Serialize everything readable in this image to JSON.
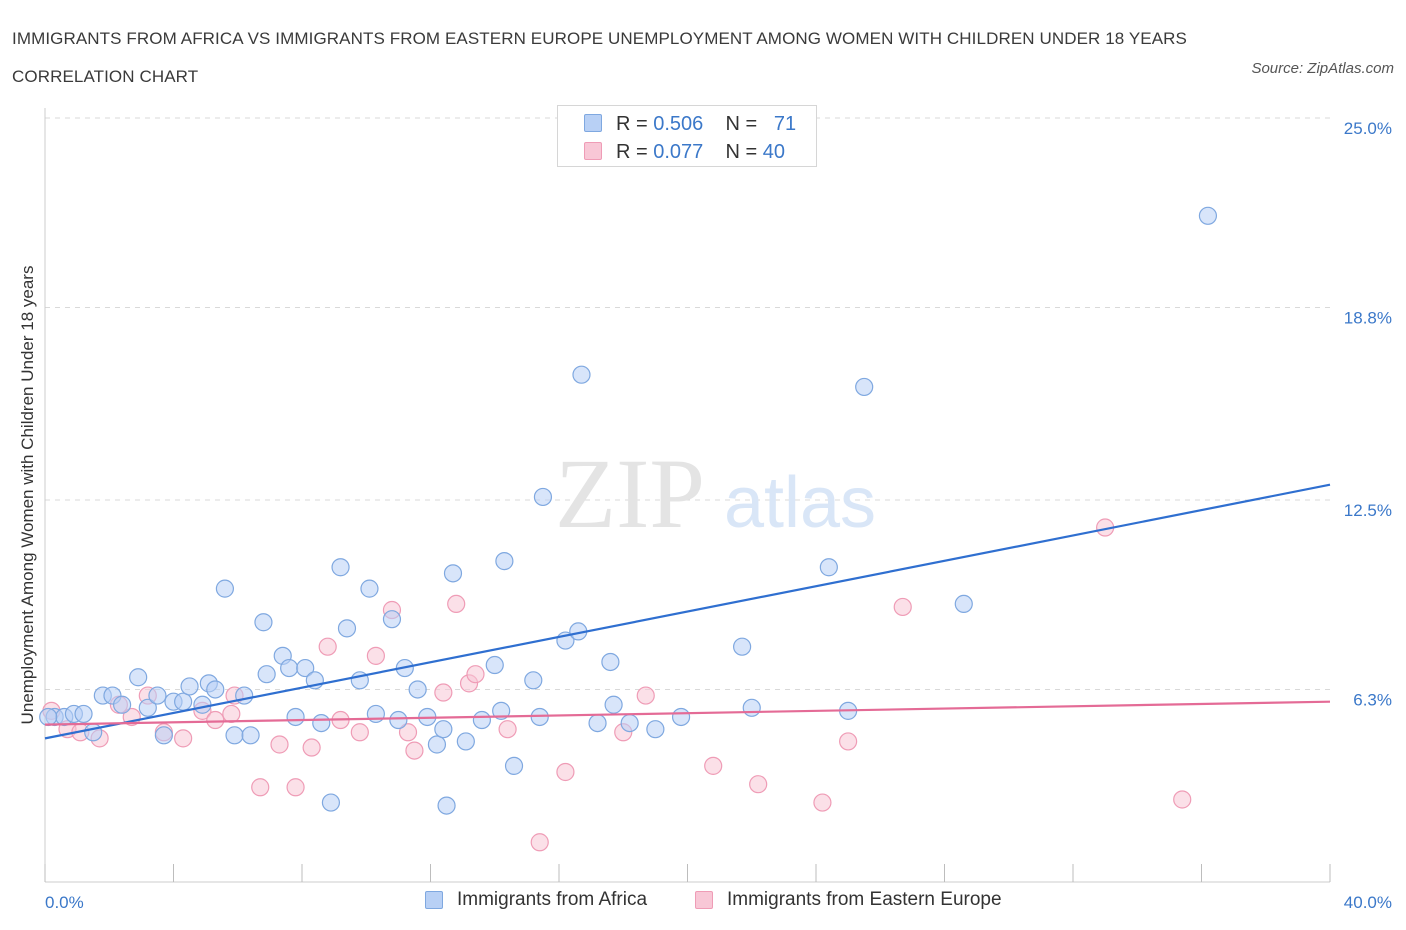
{
  "header": {
    "title": "IMMIGRANTS FROM AFRICA VS IMMIGRANTS FROM EASTERN EUROPE UNEMPLOYMENT AMONG WOMEN WITH CHILDREN UNDER 18 YEARS CORRELATION CHART",
    "source": "Source: ZipAtlas.com"
  },
  "watermark": {
    "zip": "ZIP",
    "atlas": "atlas"
  },
  "legend": {
    "africa": {
      "r_label": "R =",
      "r_value": "0.506",
      "n_label": "N =",
      "n_value": "71"
    },
    "eastern_europe": {
      "r_label": "R =",
      "r_value": "0.077",
      "n_label": "N =",
      "n_value": "40"
    }
  },
  "bottom_legend": {
    "africa": "Immigrants from Africa",
    "eastern_europe": "Immigrants from Eastern Europe"
  },
  "colors": {
    "africa_fill": "#b8d0f5",
    "africa_stroke": "#7fa8e0",
    "africa_line": "#2f6fd0",
    "europe_fill": "#f8c7d6",
    "europe_stroke": "#ef9cb6",
    "europe_line": "#e46b96",
    "tick_text": "#3b78c9",
    "grid": "#d9d9d9"
  },
  "chart_data": {
    "type": "scatter",
    "title": "IMMIGRANTS FROM AFRICA VS IMMIGRANTS FROM EASTERN EUROPE UNEMPLOYMENT AMONG WOMEN WITH CHILDREN UNDER 18 YEARS CORRELATION CHART",
    "xlabel": "",
    "ylabel": "Unemployment Among Women with Children Under 18 years",
    "xlim": [
      0,
      40
    ],
    "ylim": [
      0,
      25
    ],
    "x_tick_labels": [
      "0.0%",
      "40.0%"
    ],
    "y_ticks": [
      6.3,
      12.5,
      18.8,
      25.0
    ],
    "y_tick_labels": [
      "6.3%",
      "12.5%",
      "18.8%",
      "25.0%"
    ],
    "grid": true,
    "legend_position": "top-center",
    "series": [
      {
        "name": "Immigrants from Africa",
        "R": 0.506,
        "N": 71,
        "trend": {
          "x": [
            0,
            40
          ],
          "y": [
            4.7,
            13.0
          ]
        },
        "points": [
          [
            0.3,
            5.4
          ],
          [
            0.6,
            5.4
          ],
          [
            0.9,
            5.5
          ],
          [
            1.2,
            5.5
          ],
          [
            1.5,
            4.9
          ],
          [
            1.8,
            6.1
          ],
          [
            2.1,
            6.1
          ],
          [
            2.4,
            5.8
          ],
          [
            2.9,
            6.7
          ],
          [
            3.2,
            5.7
          ],
          [
            3.5,
            6.1
          ],
          [
            3.7,
            4.8
          ],
          [
            4.0,
            5.9
          ],
          [
            4.3,
            5.9
          ],
          [
            4.5,
            6.4
          ],
          [
            4.9,
            5.8
          ],
          [
            5.1,
            6.5
          ],
          [
            5.3,
            6.3
          ],
          [
            5.6,
            9.6
          ],
          [
            5.9,
            4.8
          ],
          [
            6.2,
            6.1
          ],
          [
            6.4,
            4.8
          ],
          [
            6.8,
            8.5
          ],
          [
            6.9,
            6.8
          ],
          [
            7.4,
            7.4
          ],
          [
            7.6,
            7.0
          ],
          [
            7.8,
            5.4
          ],
          [
            8.1,
            7.0
          ],
          [
            8.4,
            6.6
          ],
          [
            8.6,
            5.2
          ],
          [
            8.9,
            2.6
          ],
          [
            9.2,
            10.3
          ],
          [
            9.4,
            8.3
          ],
          [
            9.8,
            6.6
          ],
          [
            10.1,
            9.6
          ],
          [
            10.3,
            5.5
          ],
          [
            10.8,
            8.6
          ],
          [
            11.0,
            5.3
          ],
          [
            11.2,
            7.0
          ],
          [
            11.6,
            6.3
          ],
          [
            11.9,
            5.4
          ],
          [
            12.2,
            4.5
          ],
          [
            12.4,
            5.0
          ],
          [
            12.5,
            2.5
          ],
          [
            12.7,
            10.1
          ],
          [
            13.1,
            4.6
          ],
          [
            13.6,
            5.3
          ],
          [
            14.0,
            7.1
          ],
          [
            14.2,
            5.6
          ],
          [
            14.3,
            10.5
          ],
          [
            14.6,
            3.8
          ],
          [
            15.2,
            6.6
          ],
          [
            15.4,
            5.4
          ],
          [
            15.5,
            12.6
          ],
          [
            16.2,
            7.9
          ],
          [
            16.6,
            8.2
          ],
          [
            16.7,
            16.6
          ],
          [
            17.2,
            5.2
          ],
          [
            17.6,
            7.2
          ],
          [
            17.7,
            5.8
          ],
          [
            18.2,
            5.2
          ],
          [
            19.0,
            5.0
          ],
          [
            19.8,
            5.4
          ],
          [
            21.7,
            7.7
          ],
          [
            22.0,
            5.7
          ],
          [
            24.4,
            10.3
          ],
          [
            25.0,
            5.6
          ],
          [
            25.5,
            16.2
          ],
          [
            28.6,
            9.1
          ],
          [
            36.2,
            21.8
          ],
          [
            0.1,
            5.4
          ]
        ]
      },
      {
        "name": "Immigrants from Eastern Europe",
        "R": 0.077,
        "N": 40,
        "trend": {
          "x": [
            0,
            40
          ],
          "y": [
            5.15,
            5.9
          ]
        },
        "points": [
          [
            0.2,
            5.6
          ],
          [
            0.7,
            5.0
          ],
          [
            1.1,
            4.9
          ],
          [
            1.7,
            4.7
          ],
          [
            2.3,
            5.8
          ],
          [
            2.7,
            5.4
          ],
          [
            3.2,
            6.1
          ],
          [
            3.7,
            4.9
          ],
          [
            4.3,
            4.7
          ],
          [
            4.9,
            5.6
          ],
          [
            5.3,
            5.3
          ],
          [
            5.9,
            6.1
          ],
          [
            5.8,
            5.5
          ],
          [
            6.7,
            3.1
          ],
          [
            7.3,
            4.5
          ],
          [
            7.8,
            3.1
          ],
          [
            8.3,
            4.4
          ],
          [
            8.8,
            7.7
          ],
          [
            9.2,
            5.3
          ],
          [
            9.8,
            4.9
          ],
          [
            10.3,
            7.4
          ],
          [
            10.8,
            8.9
          ],
          [
            11.3,
            4.9
          ],
          [
            11.5,
            4.3
          ],
          [
            12.4,
            6.2
          ],
          [
            12.8,
            9.1
          ],
          [
            13.2,
            6.5
          ],
          [
            13.4,
            6.8
          ],
          [
            14.4,
            5.0
          ],
          [
            15.4,
            1.3
          ],
          [
            16.2,
            3.6
          ],
          [
            18.0,
            4.9
          ],
          [
            18.7,
            6.1
          ],
          [
            20.8,
            3.8
          ],
          [
            22.2,
            3.2
          ],
          [
            24.2,
            2.6
          ],
          [
            25.0,
            4.6
          ],
          [
            26.7,
            9.0
          ],
          [
            33.0,
            11.6
          ],
          [
            35.4,
            2.7
          ]
        ]
      }
    ]
  }
}
